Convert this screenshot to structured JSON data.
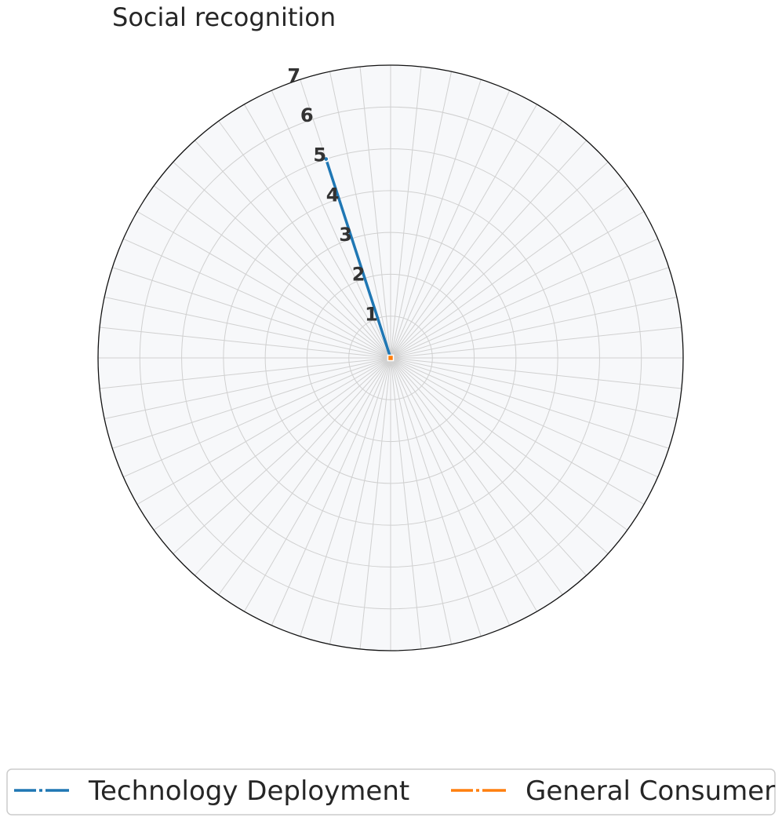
{
  "chart_data": {
    "type": "radar",
    "title": "Social recognition",
    "r_ticks": [
      "1",
      "2",
      "3",
      "4",
      "5",
      "6",
      "7"
    ],
    "r_range": [
      0,
      7
    ],
    "spoke_count": 60,
    "grid": true,
    "background_color": "#f7f8fa",
    "grid_color": "#d0d0d0",
    "series": [
      {
        "name": "Technology Deployment",
        "color": "#1f77b4",
        "points": [
          {
            "angle_deg": 18,
            "value": 0
          },
          {
            "angle_deg": 18,
            "value": 5
          }
        ]
      },
      {
        "name": "General Consumer",
        "color": "#ff7f0e",
        "points": [
          {
            "angle_deg": 18,
            "value": 0
          }
        ]
      }
    ],
    "legend_position": "bottom-center"
  }
}
